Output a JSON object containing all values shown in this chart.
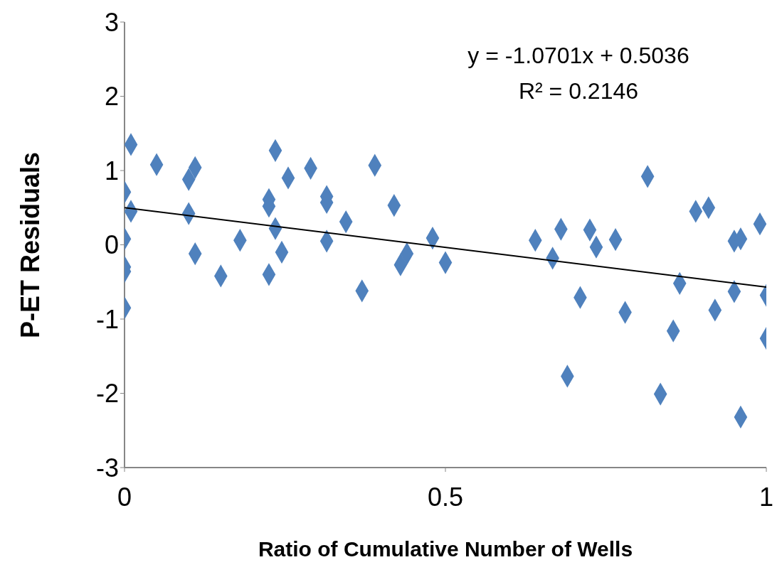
{
  "chart_data": {
    "type": "scatter",
    "xlabel": "Ratio of Cumulative Number of Wells",
    "ylabel": "P-ET Residuals",
    "xlim": [
      0,
      1
    ],
    "xticks": [
      0,
      0.5,
      1
    ],
    "ylim": [
      -3,
      3
    ],
    "yticks": [
      -3,
      -2,
      -1,
      0,
      1,
      2,
      3
    ],
    "grid": false,
    "annotations": [
      "y = -1.0701x + 0.5036",
      "R² = 0.2146"
    ],
    "series": [
      {
        "color": "#4f81bd",
        "marker": "diamond",
        "x": [
          0,
          0,
          0,
          0,
          0,
          0.01,
          0.01,
          0.05,
          0.1,
          0.1,
          0.11,
          0.11,
          0.15,
          0.18,
          0.225,
          0.225,
          0.225,
          0.235,
          0.235,
          0.245,
          0.255,
          0.29,
          0.315,
          0.315,
          0.315,
          0.345,
          0.37,
          0.39,
          0.42,
          0.43,
          0.44,
          0.48,
          0.5,
          0.64,
          0.667,
          0.68,
          0.69,
          0.71,
          0.725,
          0.735,
          0.765,
          0.78,
          0.815,
          0.835,
          0.855,
          0.865,
          0.89,
          0.91,
          0.92,
          0.95,
          0.95,
          0.96,
          0.96,
          0.99,
          1,
          1
        ],
        "values": [
          0.71,
          0.08,
          -0.3,
          -0.36,
          -0.85,
          1.35,
          0.45,
          1.08,
          0.88,
          0.42,
          1.04,
          -0.12,
          -0.42,
          0.06,
          0.61,
          0.52,
          -0.4,
          1.27,
          0.22,
          -0.1,
          0.9,
          1.03,
          0.65,
          0.57,
          0.05,
          0.31,
          -0.62,
          1.07,
          0.53,
          -0.27,
          -0.12,
          0.09,
          -0.24,
          0.06,
          -0.18,
          0.21,
          -1.77,
          -0.71,
          0.2,
          -0.03,
          0.07,
          -0.91,
          0.92,
          -2.01,
          -1.16,
          -0.52,
          0.45,
          0.5,
          -0.88,
          0.05,
          -0.63,
          0.08,
          -2.32,
          0.28,
          -0.68,
          -1.26
        ]
      },
      {
        "type": "line",
        "color": "#000000",
        "line_style": "solid",
        "x": [
          0,
          1
        ],
        "values": [
          0.5,
          -0.57
        ]
      }
    ]
  }
}
